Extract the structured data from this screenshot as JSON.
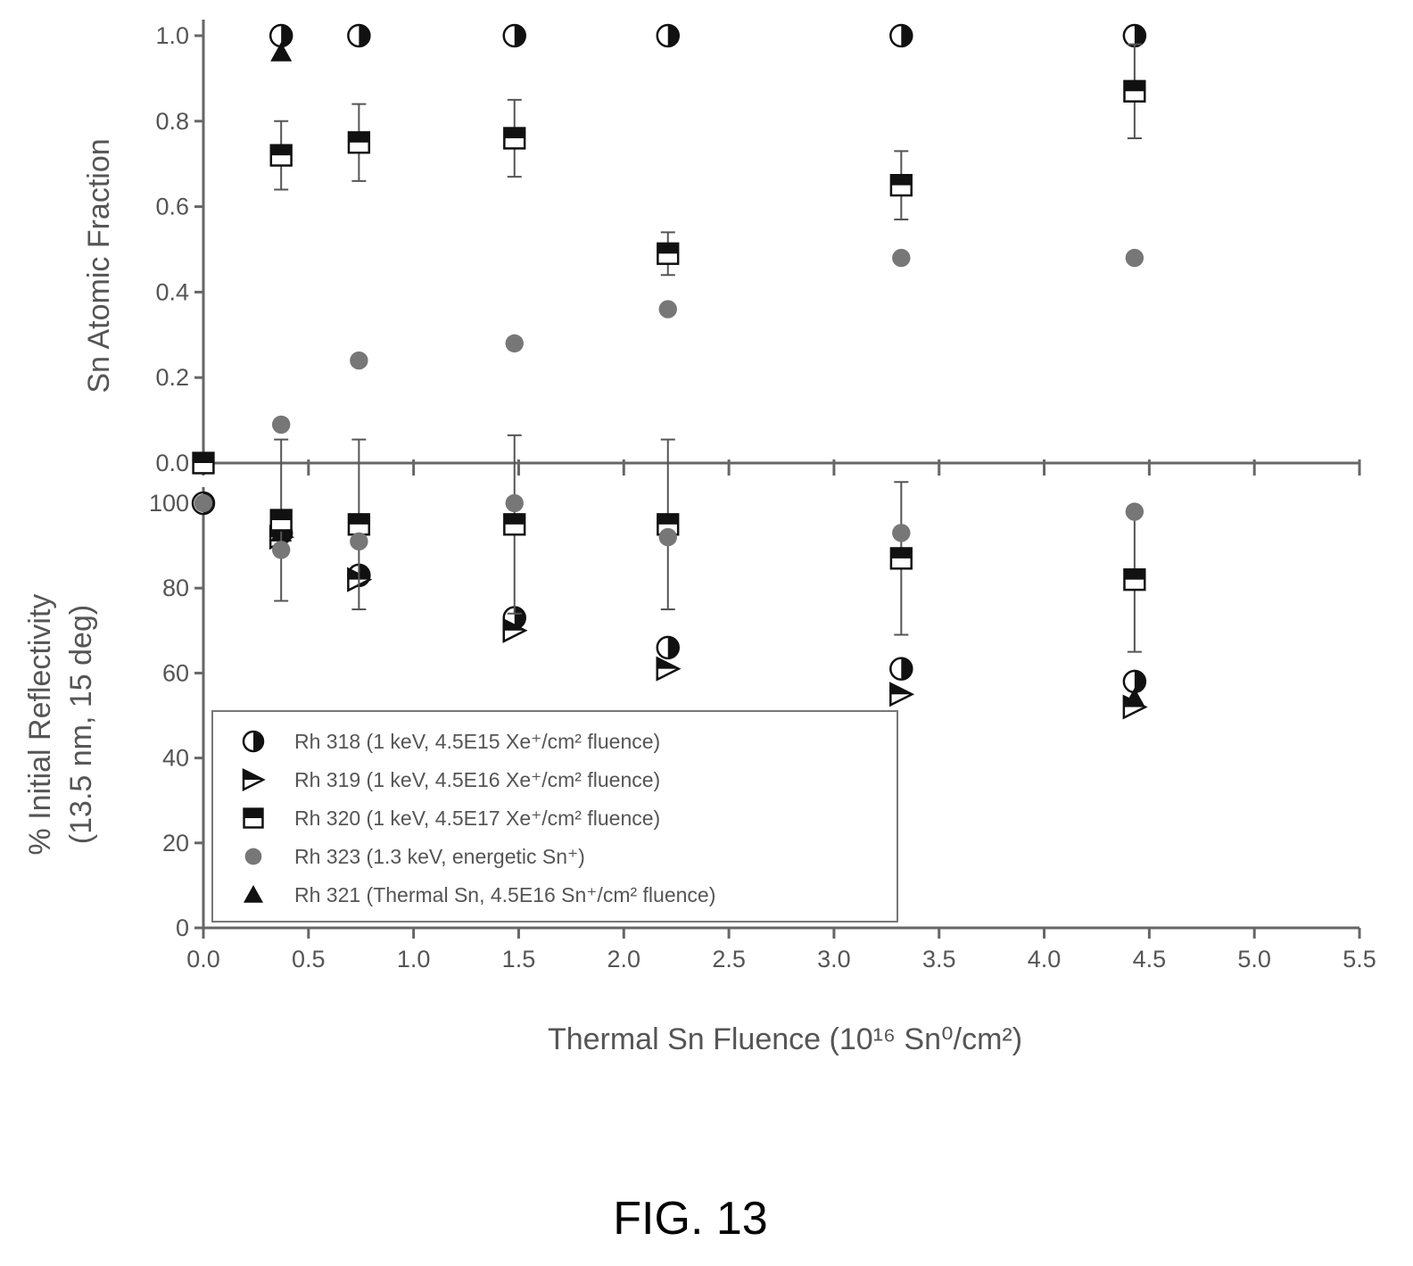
{
  "caption": "FIG. 13",
  "chart_data": {
    "type": "scatter",
    "shared_x": {
      "label": "Thermal Sn Fluence (10¹⁶ Sn⁰/cm²)",
      "xlim": [
        0.0,
        5.5
      ],
      "ticks": [
        0.0,
        0.5,
        1.0,
        1.5,
        2.0,
        2.5,
        3.0,
        3.5,
        4.0,
        4.5,
        5.0,
        5.5
      ],
      "tick_labels": [
        "0.0",
        "0.5",
        "1.0",
        "1.5",
        "2.0",
        "2.5",
        "3.0",
        "3.5",
        "4.0",
        "4.5",
        "5.0",
        "5.5"
      ]
    },
    "legend": {
      "position": "lower-left (bottom panel)",
      "entries": [
        {
          "id": "rh318",
          "label": "Rh 318 (1 keV, 4.5E15 Xe⁺/cm² fluence)",
          "marker": "half-circle",
          "color": "#111111"
        },
        {
          "id": "rh319",
          "label": "Rh 319 (1 keV, 4.5E16 Xe⁺/cm² fluence)",
          "marker": "half-triangle-right",
          "color": "#111111"
        },
        {
          "id": "rh320",
          "label": "Rh 320 (1 keV, 4.5E17 Xe⁺/cm² fluence)",
          "marker": "half-square",
          "color": "#111111"
        },
        {
          "id": "rh323",
          "label": "Rh 323 (1.3 keV, energetic Sn⁺)",
          "marker": "circle",
          "color": "#777777"
        },
        {
          "id": "rh321",
          "label": "Rh 321 (Thermal Sn, 4.5E16 Sn⁺/cm² fluence)",
          "marker": "triangle-up",
          "color": "#111111"
        }
      ]
    },
    "panels": [
      {
        "id": "top",
        "ylabel": "Sn Atomic Fraction",
        "ylim": [
          0.0,
          1.0
        ],
        "yticks": [
          0.0,
          0.2,
          0.4,
          0.6,
          0.8,
          1.0
        ],
        "ytick_labels": [
          "0.0",
          "0.2",
          "0.4",
          "0.6",
          "0.8",
          "1.0"
        ],
        "series": [
          {
            "ref": "rh318",
            "x": [
              0.37,
              0.74,
              1.48,
              2.21,
              3.32,
              4.43
            ],
            "y": [
              1.0,
              1.0,
              1.0,
              1.0,
              1.0,
              1.0
            ]
          },
          {
            "ref": "rh321",
            "x": [
              0.37
            ],
            "y": [
              0.96
            ]
          },
          {
            "ref": "rh320",
            "x": [
              0.0,
              0.37,
              0.74,
              1.48,
              2.21,
              3.32,
              4.43
            ],
            "y": [
              0.0,
              0.72,
              0.75,
              0.76,
              0.49,
              0.65,
              0.87
            ],
            "yerr": [
              0,
              0.08,
              0.09,
              0.09,
              0.05,
              0.08,
              0.11
            ]
          },
          {
            "ref": "rh323",
            "x": [
              0.37,
              0.74,
              1.48,
              2.21,
              3.32,
              4.43
            ],
            "y": [
              0.09,
              0.24,
              0.28,
              0.36,
              0.48,
              0.48
            ]
          }
        ]
      },
      {
        "id": "bottom",
        "ylabel": [
          "% Initial Reflectivity",
          "(13.5 nm, 15 deg)"
        ],
        "ylim": [
          0,
          100
        ],
        "yticks": [
          0,
          20,
          40,
          60,
          80,
          100
        ],
        "ytick_labels": [
          "0",
          "20",
          "40",
          "60",
          "80",
          "100"
        ],
        "series": [
          {
            "ref": "rh318",
            "x": [
              0.0,
              0.37,
              0.74,
              1.48,
              2.21,
              3.32,
              4.43
            ],
            "y": [
              100,
              93,
              83,
              73,
              66,
              61,
              58
            ]
          },
          {
            "ref": "rh319",
            "x": [
              0.37,
              0.74,
              1.48,
              2.21,
              3.32,
              4.43
            ],
            "y": [
              92,
              82,
              70,
              61,
              55,
              52
            ]
          },
          {
            "ref": "rh321",
            "x": [
              0.37,
              4.43
            ],
            "y": [
              93,
              54
            ]
          },
          {
            "ref": "rh320",
            "x": [
              0.37,
              0.74,
              1.48,
              2.21,
              3.32,
              4.43
            ],
            "y": [
              96,
              95,
              95,
              95,
              87,
              82
            ],
            "yerr": [
              19,
              20,
              21,
              20,
              18,
              17
            ]
          },
          {
            "ref": "rh323",
            "x": [
              0.0,
              0.37,
              0.74,
              1.48,
              2.21,
              3.32,
              4.43
            ],
            "y": [
              100,
              89,
              91,
              100,
              92,
              93,
              98
            ]
          }
        ]
      }
    ]
  }
}
